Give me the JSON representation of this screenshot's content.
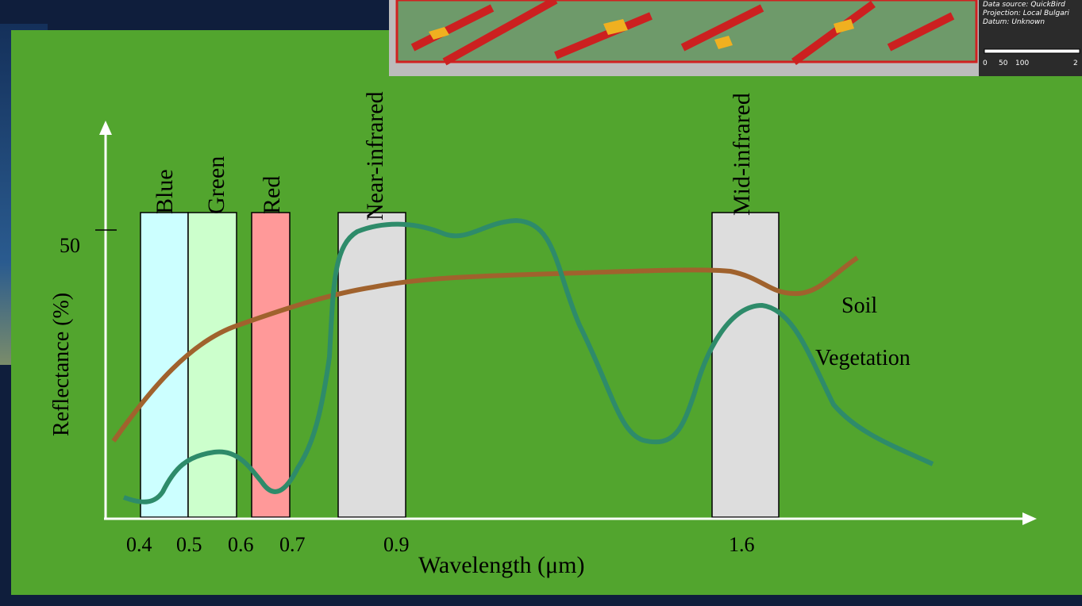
{
  "diagram": {
    "y_axis_label": "Reflectance (%)",
    "x_axis_label": "Wavelength (μm)",
    "y_tick": "50",
    "x_ticks": [
      "0.4",
      "0.5",
      "0.6",
      "0.7",
      "0.9",
      "1.6"
    ],
    "bands": [
      "Blue",
      "Green",
      "Red",
      "Near-infrared",
      "Mid-infrared"
    ],
    "curves": [
      "Soil",
      "Vegetation"
    ]
  },
  "map_inset": {
    "credits": [
      "Data source: QuickBird",
      "Projection: Local Bulgari",
      "Datum: Unknown"
    ],
    "scale_labels": [
      "0",
      "50",
      "100",
      "2"
    ]
  }
}
